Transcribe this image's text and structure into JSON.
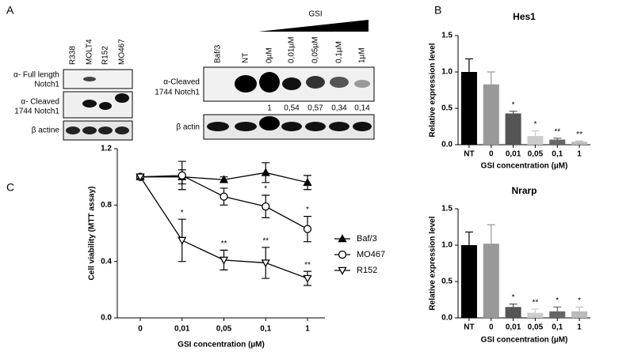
{
  "panel_labels": [
    "A",
    "B",
    "C"
  ],
  "blot_left": {
    "lanes": [
      "R338",
      "MOLT4",
      "R152",
      "MO467"
    ],
    "rows": [
      [
        "α- Full length",
        "Notch1"
      ],
      [
        "α- Cleaved",
        "1744 Notch1"
      ],
      [
        "β actine"
      ]
    ]
  },
  "blot_right": {
    "treatment": "GSI",
    "lanes": [
      "Baf/3",
      "NT",
      "0µM",
      "0,01µM",
      "0,05µM",
      "0,1µM",
      "1µM"
    ],
    "rows": [
      [
        "α-Cleaved",
        "1744 Notch1"
      ],
      [
        "β actin"
      ]
    ],
    "quantification": [
      "1",
      "0,54",
      "0,57",
      "0,34",
      "0,14"
    ]
  },
  "chart_data": [
    {
      "type": "bar",
      "title": "Hes1",
      "xlabel": "GSI concentration (µM)",
      "ylabel": "Relative expression level",
      "categories": [
        "NT",
        "0",
        "0,01",
        "0,05",
        "0,1",
        "1"
      ],
      "values": [
        1.0,
        0.83,
        0.43,
        0.12,
        0.07,
        0.04
      ],
      "errors": [
        0.18,
        0.17,
        0.03,
        0.07,
        0.02,
        0.01
      ],
      "annotations": [
        null,
        null,
        "*",
        "*",
        "**",
        "**"
      ],
      "colors": [
        "#000000",
        "#999999",
        "#555555",
        "#cccccc",
        "#666666",
        "#bbbbbb"
      ],
      "ylim": [
        0,
        1.5
      ],
      "yticks": [
        {
          "value": 0,
          "label": "0.0"
        },
        {
          "value": 0.5,
          "label": "0.5"
        },
        {
          "value": 1,
          "label": "1.0"
        },
        {
          "value": 1.5,
          "label": "1.5"
        }
      ]
    },
    {
      "type": "bar",
      "title": "Nrarp",
      "xlabel": "GSI concentration (µM)",
      "ylabel": "Relative expression level",
      "categories": [
        "NT",
        "0",
        "0,01",
        "0,05",
        "0,1",
        "1"
      ],
      "values": [
        1.0,
        1.02,
        0.15,
        0.07,
        0.09,
        0.09
      ],
      "errors": [
        0.18,
        0.26,
        0.04,
        0.05,
        0.06,
        0.06
      ],
      "annotations": [
        null,
        null,
        "*",
        "**",
        "*",
        "*"
      ],
      "colors": [
        "#000000",
        "#999999",
        "#555555",
        "#cccccc",
        "#666666",
        "#bbbbbb"
      ],
      "ylim": [
        0,
        1.5
      ],
      "yticks": [
        {
          "value": 0,
          "label": "0.0"
        },
        {
          "value": 0.5,
          "label": "0.5"
        },
        {
          "value": 1,
          "label": "1.0"
        },
        {
          "value": 1.5,
          "label": "1.5"
        }
      ]
    },
    {
      "type": "line",
      "xlabel": "GSI concentration (µM)",
      "ylabel": "Cell viability (MTT assay)",
      "categories": [
        "0",
        "0,01",
        "0,05",
        "0,1",
        "1"
      ],
      "ylim": [
        0,
        1.2
      ],
      "yticks": [
        {
          "value": 0,
          "label": "0.0"
        },
        {
          "value": 0.4,
          "label": "0.4"
        },
        {
          "value": 0.8,
          "label": "0.8"
        },
        {
          "value": 1.2,
          "label": "1.2"
        }
      ],
      "legend": "right",
      "series": [
        {
          "name": "Baf/3",
          "color": "#000000",
          "marker": "triangle-up",
          "filled": true,
          "values": [
            1.0,
            1.0,
            0.98,
            1.03,
            0.96
          ],
          "errors": [
            0.01,
            0.05,
            0.02,
            0.07,
            0.05
          ],
          "annotations": [
            null,
            null,
            null,
            null,
            null
          ]
        },
        {
          "name": "MO467",
          "color": "#000000",
          "marker": "circle",
          "filled": false,
          "values": [
            1.0,
            1.01,
            0.86,
            0.79,
            0.63
          ],
          "errors": [
            0.01,
            0.1,
            0.06,
            0.08,
            0.09
          ],
          "annotations": [
            null,
            null,
            null,
            "*",
            "*"
          ]
        },
        {
          "name": "R152",
          "color": "#000000",
          "marker": "triangle-down",
          "filled": false,
          "values": [
            1.0,
            0.55,
            0.41,
            0.39,
            0.28
          ],
          "errors": [
            0.01,
            0.15,
            0.07,
            0.11,
            0.05
          ],
          "annotations": [
            null,
            "*",
            "**",
            "**",
            "**"
          ]
        }
      ]
    }
  ]
}
